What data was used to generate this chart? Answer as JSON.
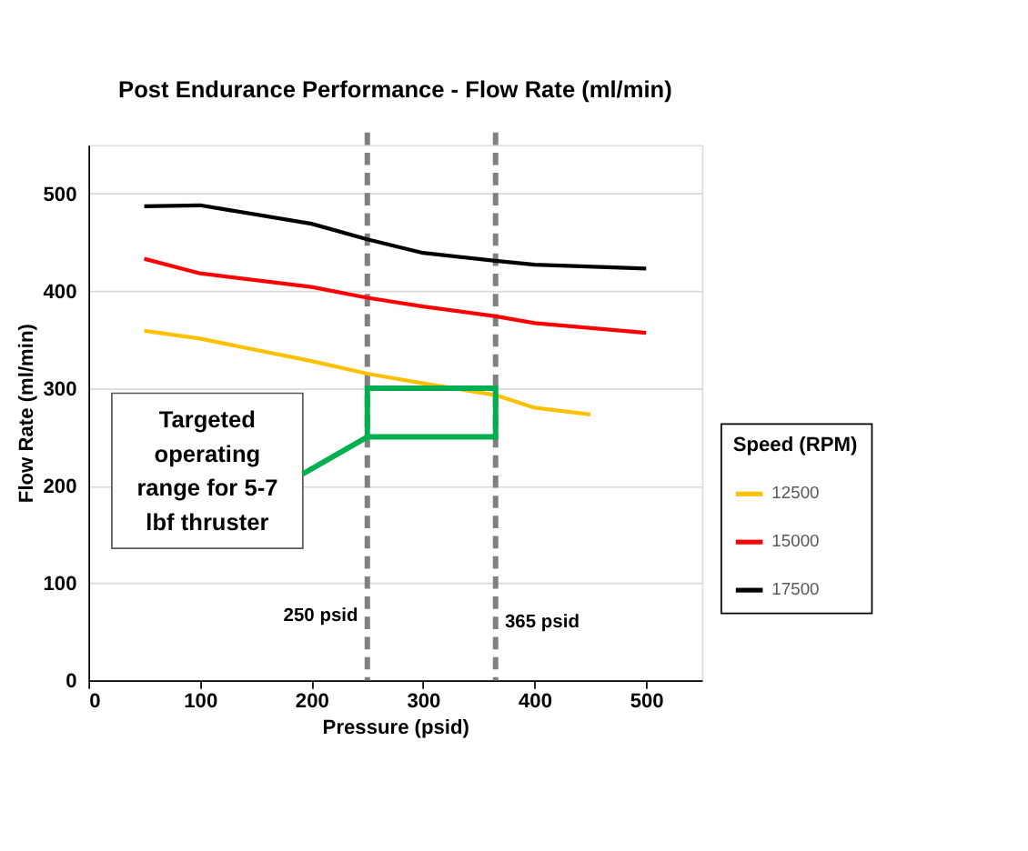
{
  "chart_data": {
    "type": "line",
    "title": "Post Endurance Performance - Flow Rate (ml/min)",
    "xlabel": "Pressure (psid)",
    "ylabel": "Flow Rate (ml/min)",
    "legend_title": "Speed (RPM)",
    "x": [
      50,
      100,
      200,
      250,
      300,
      365,
      400,
      500
    ],
    "series": [
      {
        "name": "12500",
        "color": "#ffc000",
        "x": [
          50,
          100,
          200,
          250,
          300,
          365,
          400,
          450
        ],
        "values": [
          359,
          351,
          328,
          315,
          305,
          293,
          280,
          273
        ]
      },
      {
        "name": "15000",
        "color": "#ff0000",
        "values": [
          433,
          418,
          404,
          393,
          384,
          374,
          367,
          357
        ]
      },
      {
        "name": "17500",
        "color": "#000000",
        "values": [
          487,
          488,
          469,
          453,
          439,
          431,
          427,
          423
        ]
      },
      {
        "type": "line",
        "color": "#00b050",
        "x": [
          250,
          365
        ],
        "values": [
          300,
          300
        ]
      },
      {
        "type": "line",
        "color": "#00b050",
        "x": [
          250,
          365
        ],
        "values": [
          250,
          250
        ]
      }
    ],
    "xlim": [
      0,
      550
    ],
    "ylim": [
      0,
      550
    ],
    "xticks": [
      0,
      100,
      200,
      300,
      400,
      500
    ],
    "yticks": [
      0,
      100,
      200,
      300,
      400,
      500
    ],
    "ref_lines": [
      {
        "axis": "x",
        "value": 250,
        "label": "250 psid",
        "color": "#808080",
        "line_style": "dashed"
      },
      {
        "axis": "x",
        "value": 365,
        "label": "365 psid",
        "color": "#808080",
        "line_style": "dashed"
      }
    ],
    "annotations": [
      {
        "text": "Targeted operating range for 5-7 lbf thruster",
        "x": 250,
        "y": 250
      }
    ],
    "grid": "y",
    "legend": "bottom right",
    "marker": "none",
    "line_style": "solid"
  }
}
